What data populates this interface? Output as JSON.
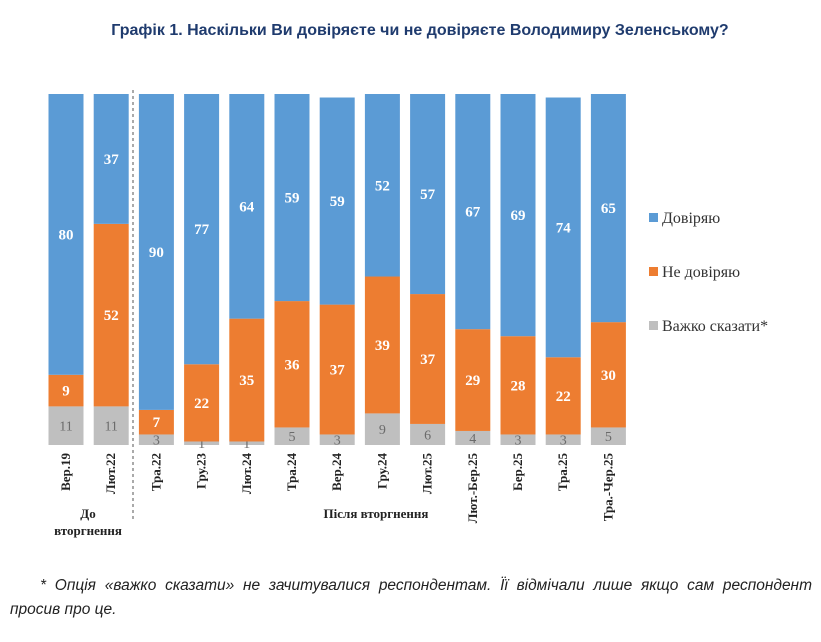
{
  "chart_data": {
    "type": "bar",
    "stacked": true,
    "title": "Графік 1. Наскільки Ви довіряєте чи не довіряєте Володимиру Зеленському?",
    "categories": [
      "Вер.19",
      "Лют.22",
      "Тра.22",
      "Гру.23",
      "Лют.24",
      "Тра.24",
      "Вер.24",
      "Гру.24",
      "Лют.25",
      "Лют.-Бер.25",
      "Бер.25",
      "Тра.25",
      "Тра.-Чер.25"
    ],
    "series": [
      {
        "name": "Довіряю",
        "color": "#5b9bd5",
        "values": [
          80,
          37,
          90,
          77,
          64,
          59,
          59,
          52,
          57,
          67,
          69,
          74,
          65
        ]
      },
      {
        "name": "Не довіряю",
        "color": "#ed7d31",
        "values": [
          9,
          52,
          7,
          22,
          35,
          36,
          37,
          39,
          37,
          29,
          28,
          22,
          30
        ]
      },
      {
        "name": "Важко сказати*",
        "color": "#bfbfbf",
        "values": [
          11,
          11,
          3,
          1,
          1,
          5,
          3,
          9,
          6,
          4,
          3,
          3,
          5
        ]
      }
    ],
    "ylim": [
      0,
      100
    ],
    "legend_position": "right",
    "groups": [
      {
        "label_lines": [
          "До",
          "вторгнення"
        ],
        "categories": [
          "Вер.19",
          "Лют.22"
        ]
      },
      {
        "label_lines": [
          "Після вторгнення"
        ],
        "categories": [
          "Тра.22",
          "Гру.23",
          "Лют.24",
          "Тра.24",
          "Вер.24",
          "Гру.24",
          "Лют.25",
          "Лют.-Бер.25",
          "Бер.25",
          "Тра.25",
          "Тра.-Чер.25"
        ]
      }
    ]
  },
  "footnote": "* Опція «важко сказати» не зачитувалися респондентам. Її відмічали лише якщо сам респондент просив про це."
}
